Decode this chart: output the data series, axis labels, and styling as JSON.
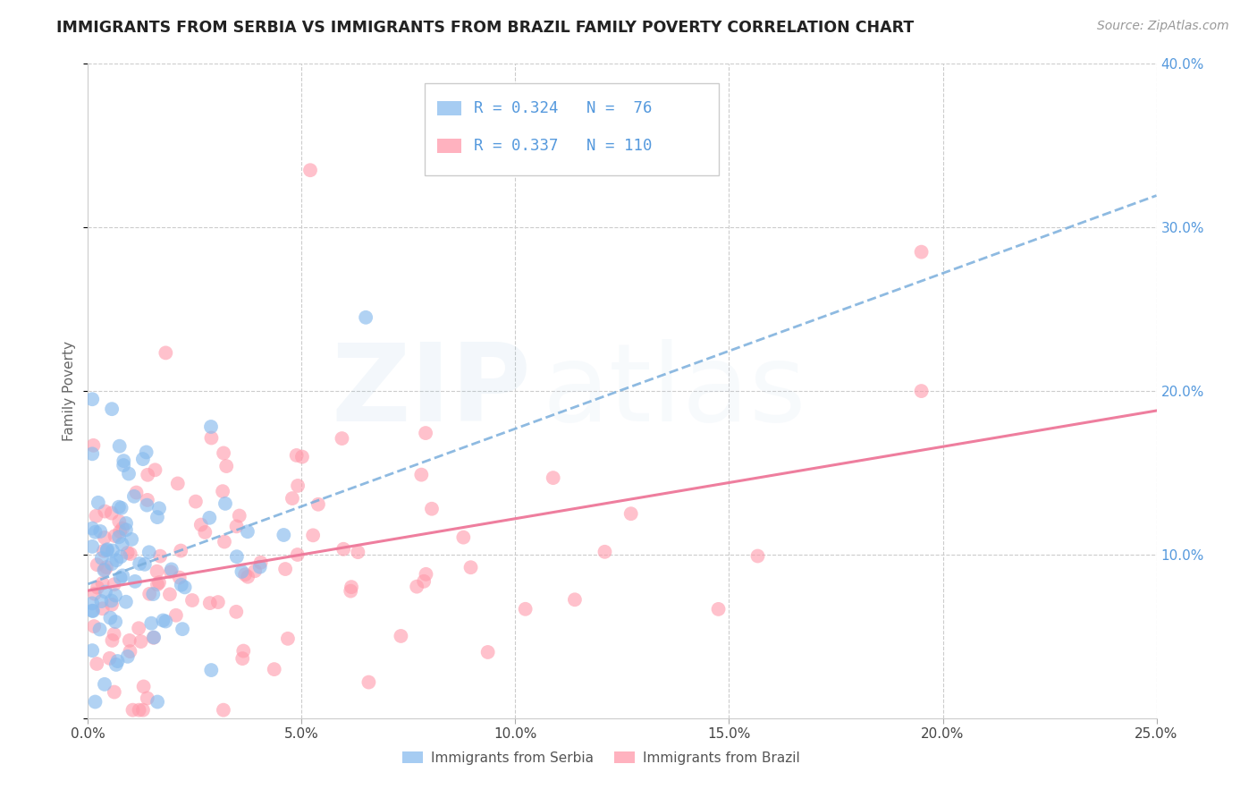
{
  "title": "IMMIGRANTS FROM SERBIA VS IMMIGRANTS FROM BRAZIL FAMILY POVERTY CORRELATION CHART",
  "source": "Source: ZipAtlas.com",
  "ylabel": "Family Poverty",
  "xlim": [
    0.0,
    0.25
  ],
  "ylim": [
    0.0,
    0.4
  ],
  "xtick_vals": [
    0.0,
    0.05,
    0.1,
    0.15,
    0.2,
    0.25
  ],
  "xtick_labels": [
    "0.0%",
    "5.0%",
    "10.0%",
    "15.0%",
    "20.0%",
    "25.0%"
  ],
  "ytick_vals": [
    0.0,
    0.1,
    0.2,
    0.3,
    0.4
  ],
  "ytick_labels": [
    "",
    "10.0%",
    "20.0%",
    "30.0%",
    "40.0%"
  ],
  "serbia_color": "#88BBEE",
  "brazil_color": "#FF99AA",
  "serbia_R": 0.324,
  "serbia_N": 76,
  "brazil_R": 0.337,
  "brazil_N": 110,
  "serbia_trend_color": "#7AAEDC",
  "brazil_trend_color": "#EE7799",
  "ytick_color": "#5599DD",
  "title_color": "#222222",
  "source_color": "#999999",
  "label_color": "#666666",
  "grid_color": "#CCCCCC",
  "legend_text_color": "#5599DD",
  "serbia_trend_intercept": 0.082,
  "serbia_trend_slope": 0.95,
  "brazil_trend_intercept": 0.078,
  "brazil_trend_slope": 0.44
}
